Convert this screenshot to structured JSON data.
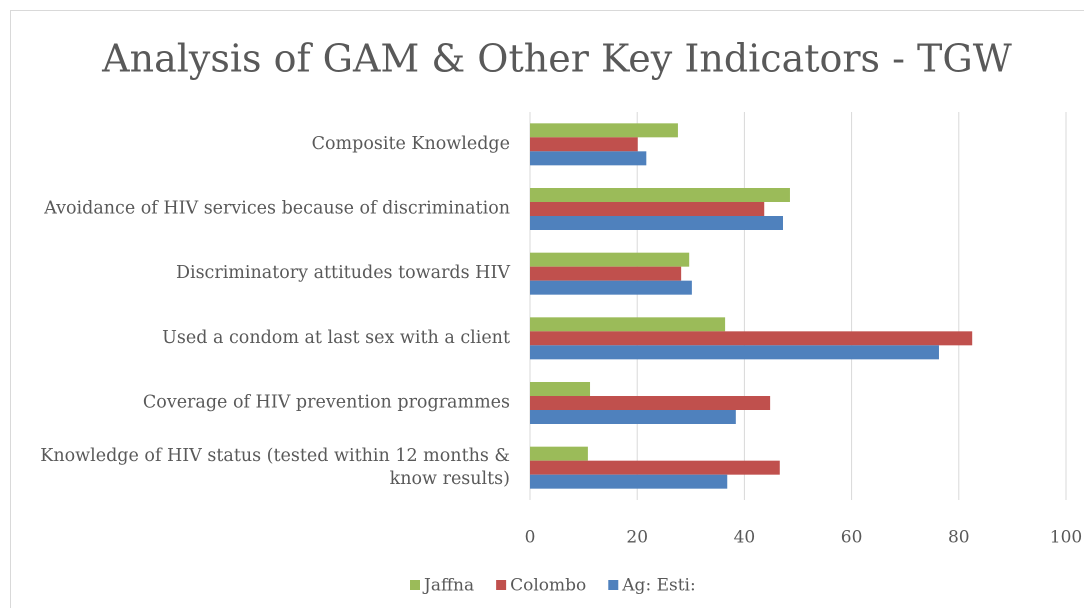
{
  "chart_data": {
    "type": "bar",
    "orientation": "horizontal",
    "title": "Analysis of GAM & Other Key Indicators - TGW",
    "categories": [
      "Composite Knowledge",
      "Avoidance of HIV services because of discrimination",
      "Discriminatory attitudes towards HIV",
      "Used a condom at last sex with a client",
      "Coverage of HIV prevention programmes",
      "Knowledge of HIV status (tested within 12 months & know results)"
    ],
    "series": [
      {
        "name": "Jaffna",
        "color": "#9bbb59",
        "values": [
          27.6,
          48.5,
          29.7,
          36.4,
          11.2,
          10.8
        ]
      },
      {
        "name": "Colombo",
        "color": "#c0504d",
        "values": [
          20.1,
          43.7,
          28.2,
          82.5,
          44.8,
          46.6
        ]
      },
      {
        "name": "Ag: Esti:",
        "color": "#4f81bd",
        "values": [
          21.7,
          47.2,
          30.2,
          76.3,
          38.4,
          36.8
        ]
      }
    ],
    "xlim": [
      0,
      100
    ],
    "xticks": [
      0,
      20,
      40,
      60,
      80,
      100
    ],
    "grid": true,
    "legend": "bottom"
  }
}
